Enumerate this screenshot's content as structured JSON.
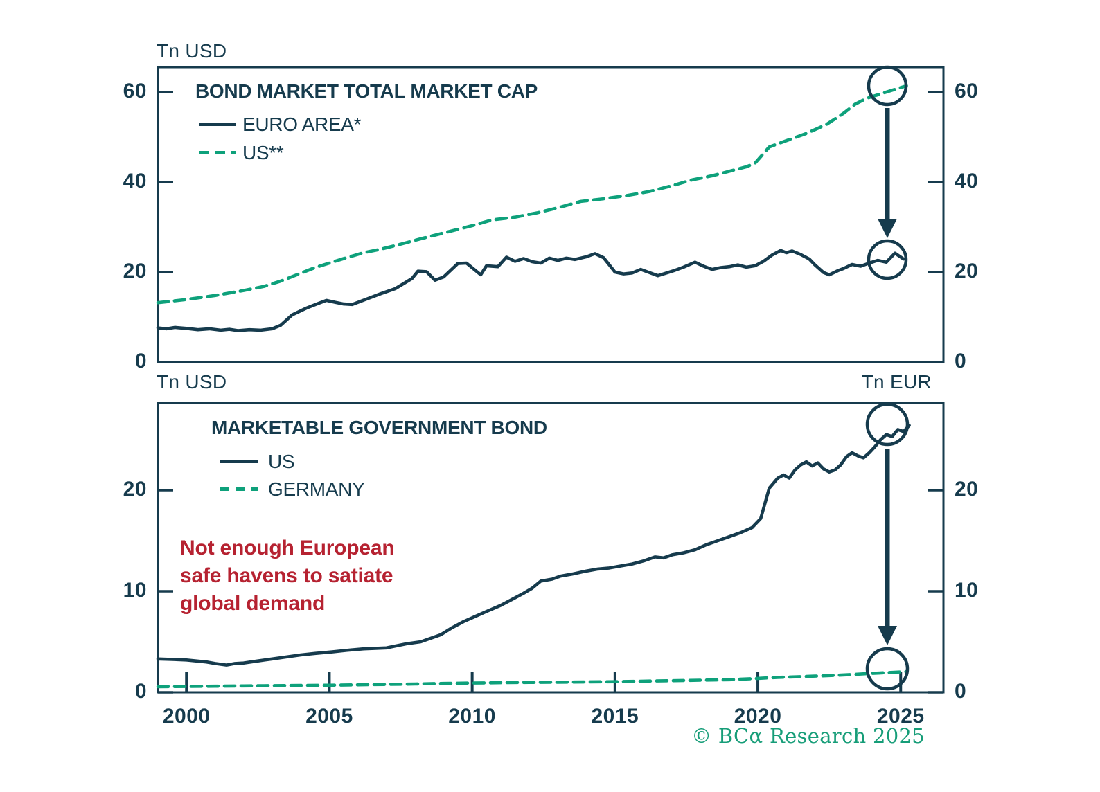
{
  "colors": {
    "dark": "#163B4D",
    "green": "#0EA17B",
    "red": "#B62231",
    "footer_green": "#169D78",
    "background": "#FFFFFF"
  },
  "footer": {
    "text": "© BCα Research 2025"
  },
  "chart_data": [
    {
      "type": "line",
      "title": "BOND MARKET TOTAL MARKET CAP",
      "unit_left": "Tn USD",
      "ylim": [
        0,
        65.5
      ],
      "yticks": [
        60,
        40,
        20,
        0
      ],
      "x_ticks": [
        2000,
        2005,
        2010,
        2015,
        2020,
        2025
      ],
      "grid": "off",
      "legend_position": "top-left",
      "annotations": [
        "endpoint-circle-us",
        "endpoint-circle-euro-area",
        "gap-arrow-down"
      ],
      "series": [
        {
          "name": "EURO AREA*",
          "style": "solid",
          "color": "dark",
          "points": [
            [
              1999.0,
              7.6
            ],
            [
              1999.3,
              7.4
            ],
            [
              1999.6,
              7.7
            ],
            [
              2000.0,
              7.5
            ],
            [
              2000.4,
              7.2
            ],
            [
              2000.8,
              7.4
            ],
            [
              2001.2,
              7.1
            ],
            [
              2001.5,
              7.3
            ],
            [
              2001.8,
              7.0
            ],
            [
              2002.2,
              7.2
            ],
            [
              2002.6,
              7.1
            ],
            [
              2003.0,
              7.4
            ],
            [
              2003.3,
              8.2
            ],
            [
              2003.7,
              10.5
            ],
            [
              2004.2,
              12.0
            ],
            [
              2004.6,
              13.0
            ],
            [
              2004.9,
              13.7
            ],
            [
              2005.2,
              13.3
            ],
            [
              2005.5,
              12.9
            ],
            [
              2005.8,
              12.8
            ],
            [
              2006.3,
              14.0
            ],
            [
              2006.8,
              15.2
            ],
            [
              2007.3,
              16.3
            ],
            [
              2007.9,
              18.6
            ],
            [
              2008.1,
              20.2
            ],
            [
              2008.4,
              20.1
            ],
            [
              2008.7,
              18.2
            ],
            [
              2009.0,
              18.9
            ],
            [
              2009.5,
              21.9
            ],
            [
              2009.8,
              22.0
            ],
            [
              2010.3,
              19.4
            ],
            [
              2010.5,
              21.4
            ],
            [
              2010.9,
              21.2
            ],
            [
              2011.2,
              23.3
            ],
            [
              2011.5,
              22.4
            ],
            [
              2011.8,
              23.0
            ],
            [
              2012.1,
              22.3
            ],
            [
              2012.4,
              22.0
            ],
            [
              2012.7,
              23.1
            ],
            [
              2013.0,
              22.6
            ],
            [
              2013.3,
              23.1
            ],
            [
              2013.6,
              22.8
            ],
            [
              2014.0,
              23.4
            ],
            [
              2014.3,
              24.1
            ],
            [
              2014.6,
              23.2
            ],
            [
              2014.8,
              21.6
            ],
            [
              2015.0,
              20.0
            ],
            [
              2015.3,
              19.6
            ],
            [
              2015.6,
              19.8
            ],
            [
              2015.9,
              20.6
            ],
            [
              2016.2,
              19.9
            ],
            [
              2016.5,
              19.2
            ],
            [
              2016.8,
              19.8
            ],
            [
              2017.1,
              20.4
            ],
            [
              2017.4,
              21.1
            ],
            [
              2017.8,
              22.2
            ],
            [
              2018.1,
              21.3
            ],
            [
              2018.4,
              20.6
            ],
            [
              2018.7,
              21.0
            ],
            [
              2019.0,
              21.2
            ],
            [
              2019.3,
              21.6
            ],
            [
              2019.6,
              21.1
            ],
            [
              2019.9,
              21.4
            ],
            [
              2020.2,
              22.4
            ],
            [
              2020.5,
              23.8
            ],
            [
              2020.8,
              24.8
            ],
            [
              2021.0,
              24.3
            ],
            [
              2021.2,
              24.7
            ],
            [
              2021.5,
              23.9
            ],
            [
              2021.8,
              22.9
            ],
            [
              2022.0,
              21.6
            ],
            [
              2022.3,
              19.9
            ],
            [
              2022.5,
              19.4
            ],
            [
              2022.8,
              20.3
            ],
            [
              2023.0,
              20.8
            ],
            [
              2023.3,
              21.7
            ],
            [
              2023.6,
              21.3
            ],
            [
              2023.9,
              22.0
            ],
            [
              2024.2,
              22.6
            ],
            [
              2024.5,
              22.2
            ],
            [
              2024.8,
              24.2
            ],
            [
              2025.1,
              22.9
            ]
          ]
        },
        {
          "name": "US**",
          "style": "dashed",
          "color": "green",
          "points": [
            [
              1999.0,
              13.2
            ],
            [
              2000.0,
              13.9
            ],
            [
              2001.0,
              14.8
            ],
            [
              2002.0,
              15.9
            ],
            [
              2002.7,
              16.8
            ],
            [
              2003.3,
              18.0
            ],
            [
              2003.7,
              19.0
            ],
            [
              2004.5,
              21.0
            ],
            [
              2005.5,
              23.0
            ],
            [
              2006.2,
              24.3
            ],
            [
              2006.8,
              25.1
            ],
            [
              2007.5,
              26.2
            ],
            [
              2008.2,
              27.4
            ],
            [
              2009.0,
              28.7
            ],
            [
              2010.0,
              30.3
            ],
            [
              2010.7,
              31.6
            ],
            [
              2011.5,
              32.2
            ],
            [
              2012.3,
              33.2
            ],
            [
              2013.0,
              34.3
            ],
            [
              2013.8,
              35.7
            ],
            [
              2014.6,
              36.3
            ],
            [
              2015.4,
              37.0
            ],
            [
              2016.2,
              37.9
            ],
            [
              2017.0,
              39.2
            ],
            [
              2017.7,
              40.5
            ],
            [
              2018.4,
              41.4
            ],
            [
              2019.0,
              42.4
            ],
            [
              2019.6,
              43.4
            ],
            [
              2019.9,
              44.2
            ],
            [
              2020.4,
              47.8
            ],
            [
              2021.0,
              49.2
            ],
            [
              2021.7,
              50.8
            ],
            [
              2022.4,
              52.8
            ],
            [
              2023.0,
              55.3
            ],
            [
              2023.4,
              57.3
            ],
            [
              2023.8,
              58.6
            ],
            [
              2024.3,
              59.6
            ],
            [
              2024.8,
              60.6
            ],
            [
              2025.2,
              61.4
            ]
          ]
        }
      ]
    },
    {
      "type": "line",
      "title": "MARKETABLE GOVERNMENT BOND",
      "unit_left": "Tn USD",
      "unit_right": "Tn EUR",
      "ylim": [
        0,
        28.6
      ],
      "yticks": [
        20,
        10,
        0
      ],
      "x_ticks": [
        2000,
        2005,
        2010,
        2015,
        2020,
        2025
      ],
      "grid": "off",
      "legend_position": "top-left",
      "annotation_lines": [
        "Not enough European",
        "safe havens to satiate",
        "global demand"
      ],
      "annotations": [
        "endpoint-circle-us",
        "endpoint-circle-germany",
        "gap-arrow-down"
      ],
      "series": [
        {
          "name": "US",
          "style": "solid",
          "color": "dark",
          "points": [
            [
              1999.0,
              3.3
            ],
            [
              1999.5,
              3.25
            ],
            [
              2000.0,
              3.2
            ],
            [
              2000.7,
              3.0
            ],
            [
              2001.0,
              2.85
            ],
            [
              2001.4,
              2.7
            ],
            [
              2001.7,
              2.85
            ],
            [
              2002.0,
              2.9
            ],
            [
              2002.5,
              3.1
            ],
            [
              2003.0,
              3.3
            ],
            [
              2003.5,
              3.5
            ],
            [
              2004.0,
              3.7
            ],
            [
              2004.5,
              3.85
            ],
            [
              2005.1,
              4.0
            ],
            [
              2005.6,
              4.15
            ],
            [
              2006.2,
              4.3
            ],
            [
              2007.0,
              4.4
            ],
            [
              2007.7,
              4.8
            ],
            [
              2008.2,
              5.0
            ],
            [
              2008.9,
              5.7
            ],
            [
              2009.3,
              6.4
            ],
            [
              2009.7,
              7.0
            ],
            [
              2010.1,
              7.5
            ],
            [
              2010.5,
              8.0
            ],
            [
              2011.0,
              8.6
            ],
            [
              2011.4,
              9.2
            ],
            [
              2011.8,
              9.8
            ],
            [
              2012.1,
              10.3
            ],
            [
              2012.4,
              11.0
            ],
            [
              2012.8,
              11.2
            ],
            [
              2013.1,
              11.5
            ],
            [
              2013.5,
              11.7
            ],
            [
              2014.0,
              12.0
            ],
            [
              2014.4,
              12.2
            ],
            [
              2014.8,
              12.3
            ],
            [
              2015.2,
              12.5
            ],
            [
              2015.6,
              12.7
            ],
            [
              2016.0,
              13.0
            ],
            [
              2016.4,
              13.4
            ],
            [
              2016.7,
              13.3
            ],
            [
              2017.0,
              13.6
            ],
            [
              2017.4,
              13.8
            ],
            [
              2017.8,
              14.1
            ],
            [
              2018.2,
              14.6
            ],
            [
              2018.6,
              15.0
            ],
            [
              2019.0,
              15.4
            ],
            [
              2019.4,
              15.8
            ],
            [
              2019.8,
              16.3
            ],
            [
              2020.1,
              17.2
            ],
            [
              2020.4,
              20.2
            ],
            [
              2020.7,
              21.2
            ],
            [
              2020.9,
              21.5
            ],
            [
              2021.1,
              21.2
            ],
            [
              2021.3,
              22.0
            ],
            [
              2021.5,
              22.5
            ],
            [
              2021.7,
              22.8
            ],
            [
              2021.9,
              22.4
            ],
            [
              2022.1,
              22.7
            ],
            [
              2022.3,
              22.1
            ],
            [
              2022.5,
              21.8
            ],
            [
              2022.7,
              22.0
            ],
            [
              2022.9,
              22.5
            ],
            [
              2023.1,
              23.3
            ],
            [
              2023.3,
              23.7
            ],
            [
              2023.5,
              23.4
            ],
            [
              2023.7,
              23.2
            ],
            [
              2023.9,
              23.7
            ],
            [
              2024.1,
              24.3
            ],
            [
              2024.3,
              25.0
            ],
            [
              2024.5,
              25.5
            ],
            [
              2024.7,
              25.3
            ],
            [
              2024.9,
              26.0
            ],
            [
              2025.1,
              25.8
            ],
            [
              2025.3,
              26.4
            ]
          ]
        },
        {
          "name": "GERMANY",
          "style": "dashed",
          "color": "green",
          "points": [
            [
              1999.0,
              0.55
            ],
            [
              2000.0,
              0.58
            ],
            [
              2001.0,
              0.6
            ],
            [
              2002.0,
              0.63
            ],
            [
              2003.0,
              0.66
            ],
            [
              2004.0,
              0.68
            ],
            [
              2005.0,
              0.7
            ],
            [
              2006.0,
              0.74
            ],
            [
              2007.0,
              0.78
            ],
            [
              2008.0,
              0.82
            ],
            [
              2009.0,
              0.88
            ],
            [
              2010.0,
              0.92
            ],
            [
              2011.0,
              0.95
            ],
            [
              2012.0,
              0.98
            ],
            [
              2013.0,
              1.0
            ],
            [
              2014.0,
              1.03
            ],
            [
              2015.0,
              1.05
            ],
            [
              2016.0,
              1.1
            ],
            [
              2017.0,
              1.15
            ],
            [
              2018.0,
              1.2
            ],
            [
              2019.0,
              1.25
            ],
            [
              2020.0,
              1.38
            ],
            [
              2020.7,
              1.48
            ],
            [
              2021.3,
              1.53
            ],
            [
              2022.0,
              1.6
            ],
            [
              2022.7,
              1.68
            ],
            [
              2023.3,
              1.76
            ],
            [
              2024.0,
              1.88
            ],
            [
              2024.6,
              1.96
            ],
            [
              2025.2,
              2.05
            ]
          ]
        }
      ]
    }
  ]
}
